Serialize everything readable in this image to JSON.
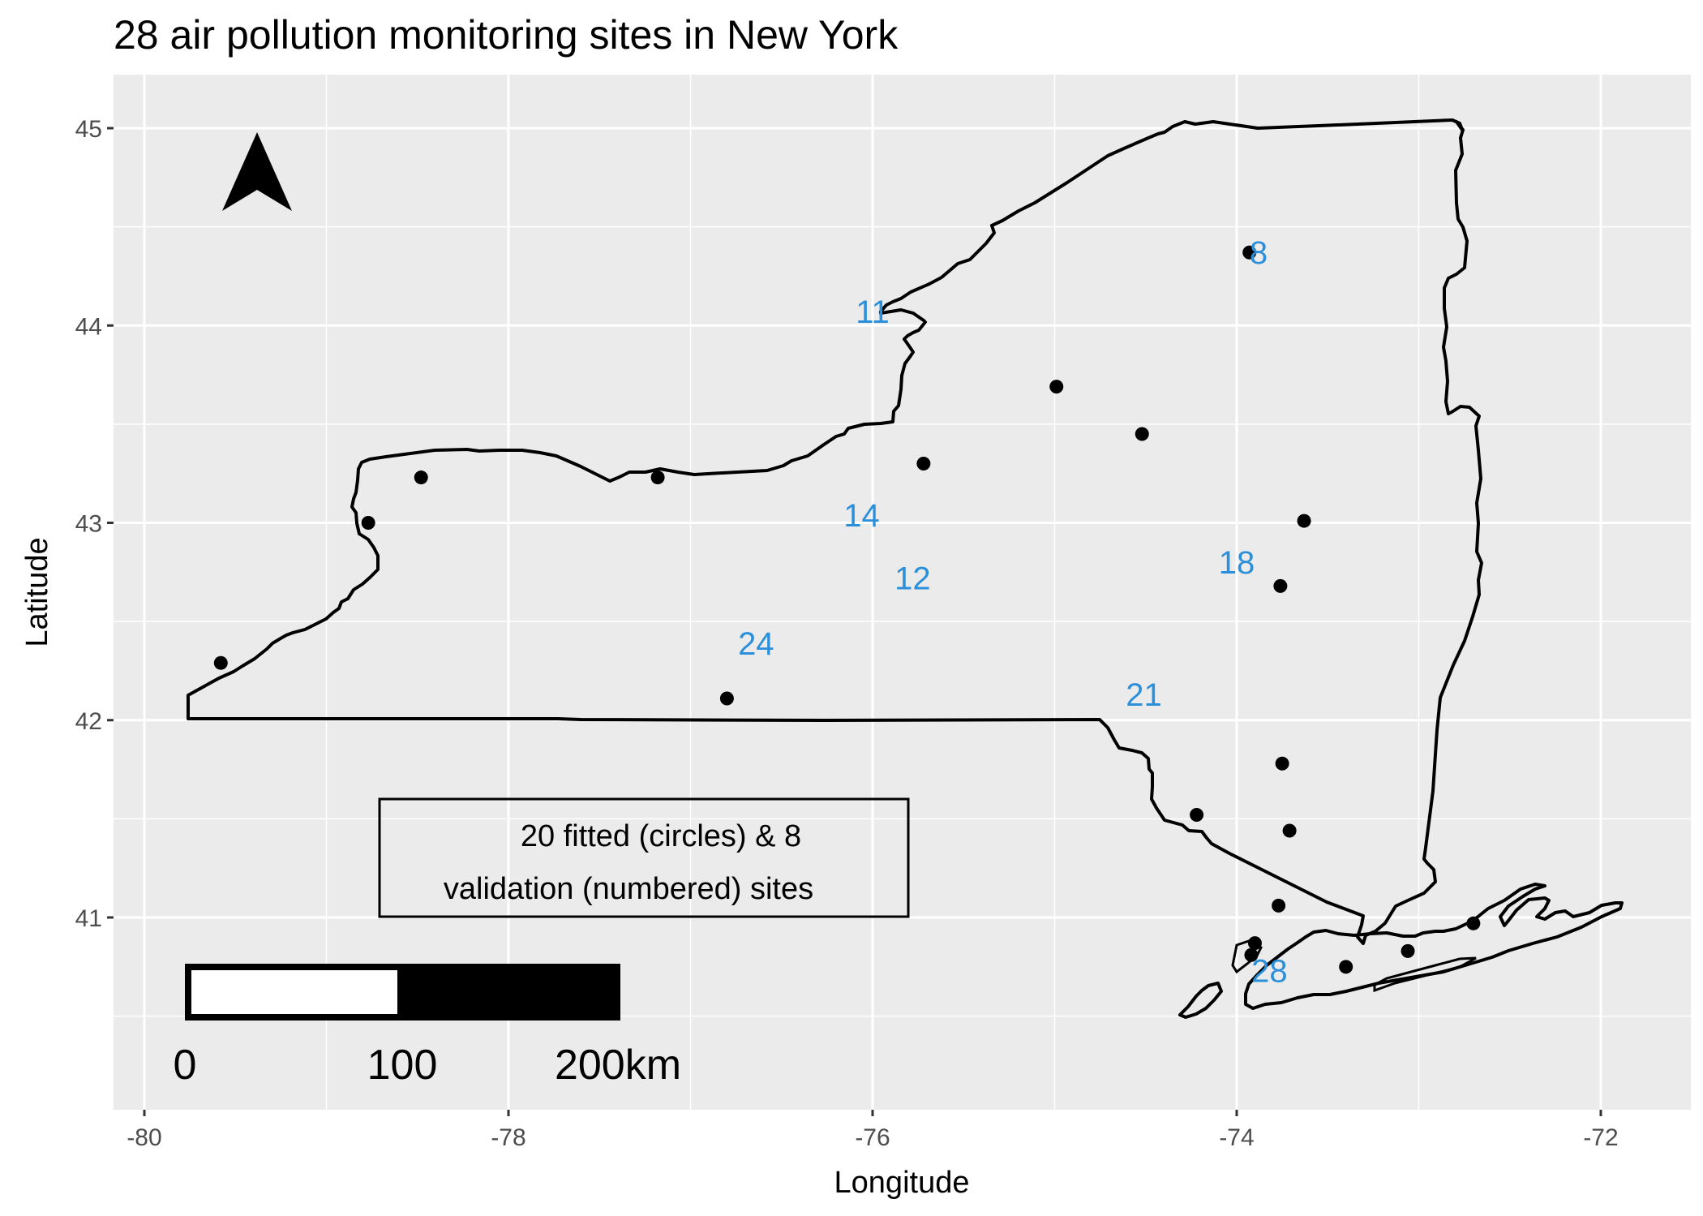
{
  "title": "28 air pollution monitoring sites in New York",
  "axes": {
    "xlabel": "Longitude",
    "ylabel": "Latitude",
    "xlim": [
      -80.3,
      -71.5
    ],
    "ylim": [
      40.12,
      45.5
    ],
    "xticks": [
      -80,
      -78,
      -76,
      -74,
      -72
    ],
    "xtick_labels": [
      "-80",
      "-78",
      "-76",
      "-74",
      "-72"
    ],
    "yticks": [
      41,
      42,
      43,
      44,
      45
    ],
    "ytick_labels": [
      "41",
      "42",
      "43",
      "44",
      "45"
    ],
    "x_minor": [
      -79,
      -77,
      -75,
      -73
    ],
    "y_minor": [
      40.5,
      41.5,
      42.5,
      43.5,
      44.5
    ],
    "grid": true
  },
  "annotation": {
    "line1": "20 fitted (circles) & 8",
    "line2": "validation (numbered) sites"
  },
  "scale_bar": {
    "labels": [
      "0",
      "100",
      "200km"
    ]
  },
  "north_arrow": {
    "icon": "north-arrow-icon"
  },
  "colors": {
    "panel": "#EBEBEB",
    "grid": "#FFFFFF",
    "point": "#000000",
    "label": "#2B90D9",
    "outline": "#000000"
  },
  "chart_data": {
    "type": "scatter",
    "title": "28 air pollution monitoring sites in New York",
    "xlabel": "Longitude",
    "ylabel": "Latitude",
    "series": [
      {
        "name": "fitted",
        "points": [
          {
            "x": -79.58,
            "y": 42.29
          },
          {
            "x": -78.77,
            "y": 43.0
          },
          {
            "x": -78.48,
            "y": 43.23
          },
          {
            "x": -77.18,
            "y": 43.23
          },
          {
            "x": -76.8,
            "y": 42.11
          },
          {
            "x": -75.72,
            "y": 43.3
          },
          {
            "x": -74.99,
            "y": 43.69
          },
          {
            "x": -74.52,
            "y": 43.45
          },
          {
            "x": -73.93,
            "y": 44.37
          },
          {
            "x": -73.63,
            "y": 43.01
          },
          {
            "x": -73.76,
            "y": 42.68
          },
          {
            "x": -73.75,
            "y": 41.78
          },
          {
            "x": -74.22,
            "y": 41.52
          },
          {
            "x": -73.71,
            "y": 41.44
          },
          {
            "x": -73.77,
            "y": 41.06
          },
          {
            "x": -73.9,
            "y": 40.87
          },
          {
            "x": -73.92,
            "y": 40.81
          },
          {
            "x": -73.4,
            "y": 40.75
          },
          {
            "x": -73.06,
            "y": 40.83
          },
          {
            "x": -72.7,
            "y": 40.97
          }
        ]
      },
      {
        "name": "validation",
        "points": [
          {
            "label": "8",
            "x": -73.88,
            "y": 44.37
          },
          {
            "label": "11",
            "x": -76.0,
            "y": 44.07
          },
          {
            "label": "14",
            "x": -76.06,
            "y": 43.04
          },
          {
            "label": "12",
            "x": -75.78,
            "y": 42.72
          },
          {
            "label": "18",
            "x": -74.0,
            "y": 42.8
          },
          {
            "label": "24",
            "x": -76.64,
            "y": 42.39
          },
          {
            "label": "21",
            "x": -74.51,
            "y": 42.13
          },
          {
            "label": "28",
            "x": -73.82,
            "y": 40.73
          }
        ]
      }
    ],
    "xlim": [
      -80.3,
      -71.5
    ],
    "ylim": [
      40.12,
      45.5
    ]
  }
}
